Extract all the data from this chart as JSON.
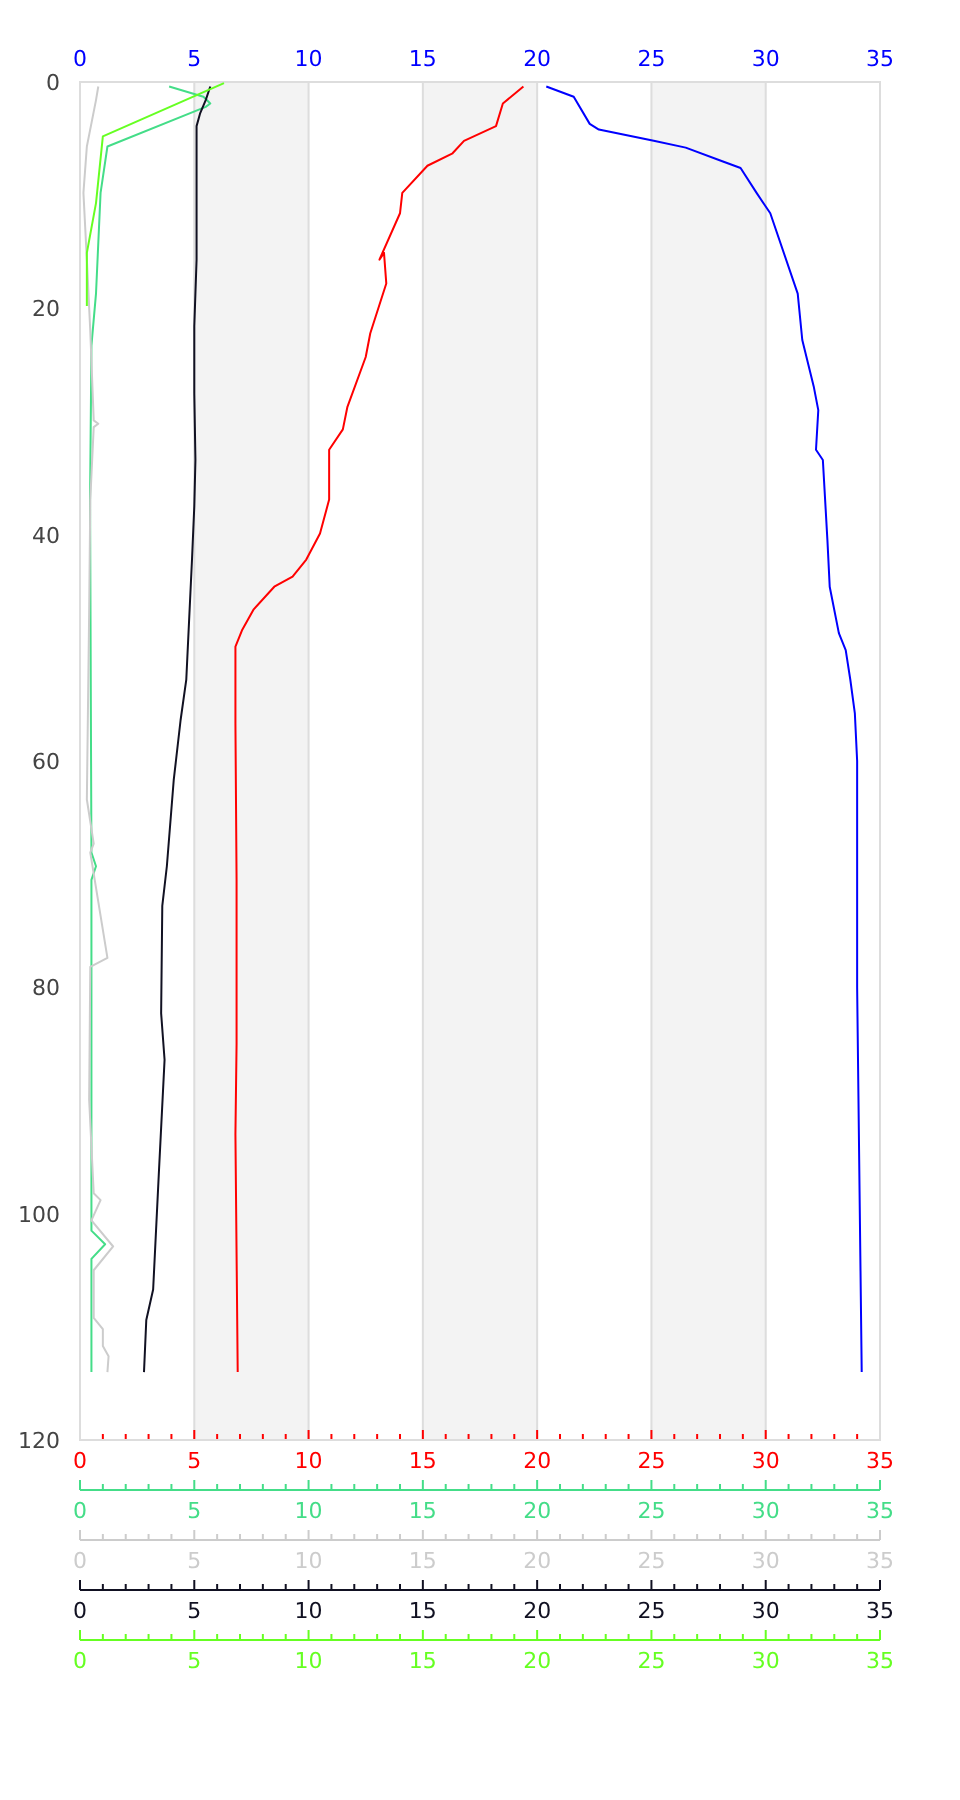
{
  "chart_data": [
    {
      "type": "line",
      "ylim": [
        120,
        0
      ],
      "yticks": [
        0,
        20,
        40,
        60,
        80,
        100,
        120
      ],
      "xlim": [
        0,
        35
      ],
      "xticks": [
        0,
        {
          "value": 1,
          "label": null
        },
        {
          "value": 2,
          "label": null
        },
        {
          "value": 3,
          "label": null
        },
        {
          "value": 4,
          "label": null
        },
        5,
        {
          "value": 6,
          "label": null
        },
        {
          "value": 7,
          "label": null
        },
        {
          "value": 8,
          "label": null
        },
        {
          "value": 9,
          "label": null
        },
        10,
        {
          "value": 11,
          "label": null
        },
        {
          "value": 12,
          "label": null
        },
        {
          "value": 13,
          "label": null
        },
        {
          "value": 14,
          "label": null
        },
        15,
        {
          "value": 16,
          "label": null
        },
        {
          "value": 17,
          "label": null
        },
        {
          "value": 18,
          "label": null
        },
        {
          "value": 19,
          "label": null
        },
        20,
        {
          "value": 21,
          "label": null
        },
        {
          "value": 22,
          "label": null
        },
        {
          "value": 23,
          "label": null
        },
        {
          "value": 24,
          "label": null
        },
        25,
        {
          "value": 26,
          "label": null
        },
        {
          "value": 27,
          "label": null
        },
        {
          "value": 28,
          "label": null
        },
        {
          "value": 29,
          "label": null
        },
        30,
        {
          "value": 31,
          "label": null
        },
        {
          "value": 32,
          "label": null
        },
        {
          "value": 33,
          "label": null
        },
        {
          "value": 34,
          "label": null
        },
        35
      ],
      "x2lim": [
        0,
        35
      ],
      "x2ticks": [
        0,
        5,
        10,
        15,
        20,
        25,
        30,
        35
      ],
      "bands": [
        {
          "axis": "x",
          "from": 5,
          "to": 10,
          "color": "#f3f3f3"
        },
        {
          "axis": "x",
          "from": 15,
          "to": 20,
          "color": "#f3f3f3"
        },
        {
          "axis": "x",
          "from": 25,
          "to": 30,
          "color": "#f3f3f3"
        }
      ],
      "series": [
        {
          "axis": "x2",
          "color": "#0000ff",
          "x": [
            20.4,
            21.6,
            22.3,
            22.7,
            25.1,
            26.5,
            28.1,
            28.9,
            29.6,
            30.2,
            31.4,
            31.6,
            32.1,
            32.3,
            32.2,
            32.5,
            32.7,
            32.8,
            33.2,
            33.5,
            33.7,
            33.9,
            34.0,
            34.0,
            34.2
          ],
          "values": [
            0.4,
            1.3,
            3.7,
            4.2,
            5.2,
            5.8,
            7.0,
            7.6,
            9.8,
            11.6,
            18.7,
            22.8,
            26.9,
            29.0,
            32.5,
            33.4,
            40.5,
            44.6,
            48.7,
            50.2,
            52.8,
            55.8,
            60,
            80,
            114
          ]
        },
        {
          "color": "#ff0000",
          "x": [
            19.4,
            18.5,
            18.2,
            16.8,
            16.3,
            15.2,
            14.1,
            14.0,
            13.1,
            13.3,
            13.4,
            12.7,
            12.5,
            11.7,
            11.5,
            10.9,
            10.9,
            10.5,
            9.9,
            9.3,
            8.5,
            7.6,
            7.1,
            6.8,
            6.8,
            6.85,
            6.85,
            6.8,
            6.9
          ],
          "values": [
            0.4,
            1.9,
            3.9,
            5.2,
            6.3,
            7.4,
            9.8,
            11.6,
            15.7,
            15.1,
            17.8,
            22.2,
            24.3,
            28.7,
            30.7,
            32.5,
            36.9,
            39.9,
            42.2,
            43.7,
            44.6,
            46.6,
            48.4,
            49.9,
            56.7,
            70.5,
            85,
            93,
            114
          ]
        }
      ]
    },
    {
      "type": "line",
      "ylim": [
        120,
        0
      ],
      "tick_labels": "x",
      "xlim": [
        0,
        35
      ],
      "xticks": [
        0,
        {
          "value": 1,
          "label": null
        },
        {
          "value": 2,
          "label": null
        },
        {
          "value": 3,
          "label": null
        },
        {
          "value": 4,
          "label": null
        },
        5,
        {
          "value": 6,
          "label": null
        },
        {
          "value": 7,
          "label": null
        },
        {
          "value": 8,
          "label": null
        },
        {
          "value": 9,
          "label": null
        },
        10,
        {
          "value": 11,
          "label": null
        },
        {
          "value": 12,
          "label": null
        },
        {
          "value": 13,
          "label": null
        },
        {
          "value": 14,
          "label": null
        },
        15,
        {
          "value": 16,
          "label": null
        },
        {
          "value": 17,
          "label": null
        },
        {
          "value": 18,
          "label": null
        },
        {
          "value": 19,
          "label": null
        },
        20,
        {
          "value": 21,
          "label": null
        },
        {
          "value": 22,
          "label": null
        },
        {
          "value": 23,
          "label": null
        },
        {
          "value": 24,
          "label": null
        },
        25,
        {
          "value": 26,
          "label": null
        },
        {
          "value": 27,
          "label": null
        },
        {
          "value": 28,
          "label": null
        },
        {
          "value": 29,
          "label": null
        },
        30,
        {
          "value": 31,
          "label": null
        },
        {
          "value": 32,
          "label": null
        },
        {
          "value": 33,
          "label": null
        },
        {
          "value": 34,
          "label": null
        },
        35
      ],
      "series": [
        {
          "color": "#44dd88",
          "x": [
            3.9,
            5.4,
            5.7,
            5.5,
            1.2,
            0.9,
            0.7,
            0.5,
            0.44,
            0.5,
            0.7,
            0.5,
            0.5,
            1.1,
            0.5,
            0.5
          ],
          "values": [
            0.4,
            1.3,
            1.9,
            2.2,
            5.7,
            9.8,
            18.7,
            23.3,
            36.9,
            68.1,
            69.3,
            70.5,
            101.5,
            102.7,
            104,
            114
          ]
        }
      ]
    },
    {
      "type": "line",
      "ylim": [
        120,
        0
      ],
      "tick_labels": "x",
      "xlim": [
        0,
        35
      ],
      "xticks": [
        0,
        {
          "value": 1,
          "label": null
        },
        {
          "value": 2,
          "label": null
        },
        {
          "value": 3,
          "label": null
        },
        {
          "value": 4,
          "label": null
        },
        5,
        {
          "value": 6,
          "label": null
        },
        {
          "value": 7,
          "label": null
        },
        {
          "value": 8,
          "label": null
        },
        {
          "value": 9,
          "label": null
        },
        10,
        {
          "value": 11,
          "label": null
        },
        {
          "value": 12,
          "label": null
        },
        {
          "value": 13,
          "label": null
        },
        {
          "value": 14,
          "label": null
        },
        15,
        {
          "value": 16,
          "label": null
        },
        {
          "value": 17,
          "label": null
        },
        {
          "value": 18,
          "label": null
        },
        {
          "value": 19,
          "label": null
        },
        20,
        {
          "value": 21,
          "label": null
        },
        {
          "value": 22,
          "label": null
        },
        {
          "value": 23,
          "label": null
        },
        {
          "value": 24,
          "label": null
        },
        25,
        {
          "value": 26,
          "label": null
        },
        {
          "value": 27,
          "label": null
        },
        {
          "value": 28,
          "label": null
        },
        {
          "value": 29,
          "label": null
        },
        30,
        {
          "value": 31,
          "label": null
        },
        {
          "value": 32,
          "label": null
        },
        {
          "value": 33,
          "label": null
        },
        {
          "value": 34,
          "label": null
        },
        35
      ],
      "series": [
        {
          "color": "#cccccc",
          "x": [
            0.8,
            0.7,
            0.3,
            0.15,
            0.3,
            0.45,
            0.6,
            0.8,
            0.6,
            0.45,
            0.4,
            0.3,
            0.6,
            0.45,
            1.2,
            0.45,
            0.4,
            0.6,
            0.9,
            0.5,
            1.45,
            0.6,
            0.6,
            1.0,
            1.0,
            1.25,
            1.2
          ],
          "values": [
            0.4,
            1.6,
            5.7,
            9.8,
            15.7,
            22,
            29.9,
            30.2,
            30.5,
            36.9,
            46.9,
            63.4,
            67.3,
            68.1,
            77.4,
            78.2,
            89.9,
            98.2,
            98.8,
            100.6,
            102.9,
            105,
            109.2,
            110.2,
            111.7,
            112.6,
            114
          ]
        }
      ]
    },
    {
      "type": "line",
      "ylim": [
        120,
        0
      ],
      "tick_labels": "x",
      "xlim": [
        0,
        35
      ],
      "xticks": [
        0,
        {
          "value": 1,
          "label": null
        },
        {
          "value": 2,
          "label": null
        },
        {
          "value": 3,
          "label": null
        },
        {
          "value": 4,
          "label": null
        },
        5,
        {
          "value": 6,
          "label": null
        },
        {
          "value": 7,
          "label": null
        },
        {
          "value": 8,
          "label": null
        },
        {
          "value": 9,
          "label": null
        },
        10,
        {
          "value": 11,
          "label": null
        },
        {
          "value": 12,
          "label": null
        },
        {
          "value": 13,
          "label": null
        },
        {
          "value": 14,
          "label": null
        },
        15,
        {
          "value": 16,
          "label": null
        },
        {
          "value": 17,
          "label": null
        },
        {
          "value": 18,
          "label": null
        },
        {
          "value": 19,
          "label": null
        },
        20,
        {
          "value": 21,
          "label": null
        },
        {
          "value": 22,
          "label": null
        },
        {
          "value": 23,
          "label": null
        },
        {
          "value": 24,
          "label": null
        },
        25,
        {
          "value": 26,
          "label": null
        },
        {
          "value": 27,
          "label": null
        },
        {
          "value": 28,
          "label": null
        },
        {
          "value": 29,
          "label": null
        },
        30,
        {
          "value": 31,
          "label": null
        },
        {
          "value": 32,
          "label": null
        },
        {
          "value": 33,
          "label": null
        },
        {
          "value": 34,
          "label": null
        },
        35
      ],
      "series": [
        {
          "color": "#111122",
          "x": [
            5.7,
            5.5,
            5.25,
            5.1,
            5.1,
            5.0,
            5.0,
            5.05,
            5.0,
            4.9,
            4.65,
            4.4,
            4.1,
            3.8,
            3.6,
            3.55,
            3.7,
            3.45,
            3.2,
            2.9,
            2.8
          ],
          "values": [
            0.4,
            1.6,
            2.8,
            3.9,
            15.7,
            21.6,
            27.5,
            33.4,
            37.5,
            42.2,
            52.8,
            56.4,
            61.7,
            69.3,
            72.8,
            82.3,
            86.4,
            96.4,
            106.7,
            109.4,
            114
          ]
        }
      ]
    },
    {
      "type": "line",
      "ylim": [
        120,
        0
      ],
      "tick_labels": "x",
      "xlim": [
        0,
        35
      ],
      "xticks": [
        0,
        {
          "value": 1,
          "label": null
        },
        {
          "value": 2,
          "label": null
        },
        {
          "value": 3,
          "label": null
        },
        {
          "value": 4,
          "label": null
        },
        5,
        {
          "value": 6,
          "label": null
        },
        {
          "value": 7,
          "label": null
        },
        {
          "value": 8,
          "label": null
        },
        {
          "value": 9,
          "label": null
        },
        10,
        {
          "value": 11,
          "label": null
        },
        {
          "value": 12,
          "label": null
        },
        {
          "value": 13,
          "label": null
        },
        {
          "value": 14,
          "label": null
        },
        15,
        {
          "value": 16,
          "label": null
        },
        {
          "value": 17,
          "label": null
        },
        {
          "value": 18,
          "label": null
        },
        {
          "value": 19,
          "label": null
        },
        20,
        {
          "value": 21,
          "label": null
        },
        {
          "value": 22,
          "label": null
        },
        {
          "value": 23,
          "label": null
        },
        {
          "value": 24,
          "label": null
        },
        25,
        {
          "value": 26,
          "label": null
        },
        {
          "value": 27,
          "label": null
        },
        {
          "value": 28,
          "label": null
        },
        {
          "value": 29,
          "label": null
        },
        30,
        {
          "value": 31,
          "label": null
        },
        {
          "value": 32,
          "label": null
        },
        {
          "value": 33,
          "label": null
        },
        {
          "value": 34,
          "label": null
        },
        35
      ],
      "series": [
        {
          "color": "#66ff22",
          "x": [
            6.3,
            1.0,
            0.7,
            0.3,
            0.3
          ],
          "values": [
            0.1,
            4.8,
            10.7,
            15.1,
            19.8
          ]
        }
      ]
    }
  ]
}
